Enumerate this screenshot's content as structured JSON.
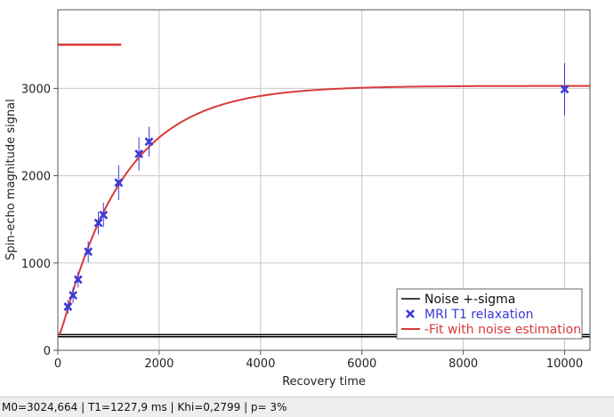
{
  "chart_data": {
    "type": "scatter",
    "title": "",
    "xlabel": "Recovery time",
    "ylabel": "Spin-echo magnitude signal",
    "xlim": [
      0,
      10500
    ],
    "ylim": [
      0,
      3900
    ],
    "x_ticks": [
      0,
      2000,
      4000,
      6000,
      8000,
      10000
    ],
    "y_ticks": [
      0,
      1000,
      2000,
      3000
    ],
    "grid": true,
    "legend_position": "bottom-right",
    "series": [
      {
        "name": "Noise +-sigma",
        "type": "line",
        "color": "#000000",
        "lines": [
          [
            0,
            10500,
            155
          ],
          [
            0,
            10500,
            180
          ]
        ]
      },
      {
        "name": "MRI T1 relaxation",
        "type": "scatter",
        "color": "#3a3ad8",
        "marker": "x",
        "points": [
          {
            "x": 200,
            "y": 500,
            "err": 80
          },
          {
            "x": 300,
            "y": 630,
            "err": 90
          },
          {
            "x": 400,
            "y": 810,
            "err": 90
          },
          {
            "x": 600,
            "y": 1130,
            "err": 120
          },
          {
            "x": 800,
            "y": 1460,
            "err": 130
          },
          {
            "x": 900,
            "y": 1550,
            "err": 140
          },
          {
            "x": 1200,
            "y": 1920,
            "err": 200
          },
          {
            "x": 1600,
            "y": 2250,
            "err": 190
          },
          {
            "x": 1800,
            "y": 2390,
            "err": 170
          },
          {
            "x": 10000,
            "y": 2990,
            "err": 300
          }
        ]
      },
      {
        "name": "-Fit with noise estimation",
        "type": "line",
        "color": "#d93a3a",
        "M0": 3024.664,
        "T1": 1227.9,
        "noise_sigma": 170,
        "segment": [
          0,
          1250,
          3500
        ]
      }
    ]
  },
  "status": {
    "text": "M0=3024,664  |  T1=1227,9 ms  |  Khi=0,2799  |  p= 3%"
  }
}
